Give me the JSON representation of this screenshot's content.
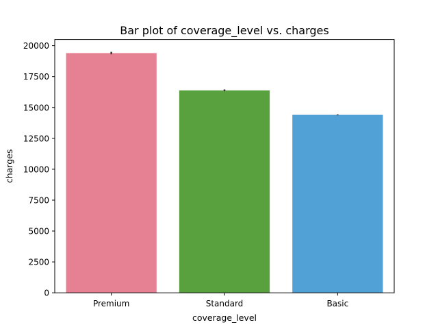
{
  "chart_data": {
    "type": "bar",
    "title": "Bar plot of coverage_level vs. charges",
    "xlabel": "coverage_level",
    "ylabel": "charges",
    "categories": [
      "Premium",
      "Standard",
      "Basic"
    ],
    "values": [
      19400,
      16380,
      14400
    ],
    "error_bars": [
      [
        19300,
        19500
      ],
      [
        16300,
        16460
      ],
      [
        14360,
        14440
      ]
    ],
    "colors": [
      "#e68193",
      "#59a13e",
      "#51a0d6"
    ],
    "ylim": [
      0,
      20500
    ],
    "yticks": [
      0,
      2500,
      5000,
      7500,
      10000,
      12500,
      15000,
      17500,
      20000
    ],
    "grid": false,
    "legend": "none"
  }
}
